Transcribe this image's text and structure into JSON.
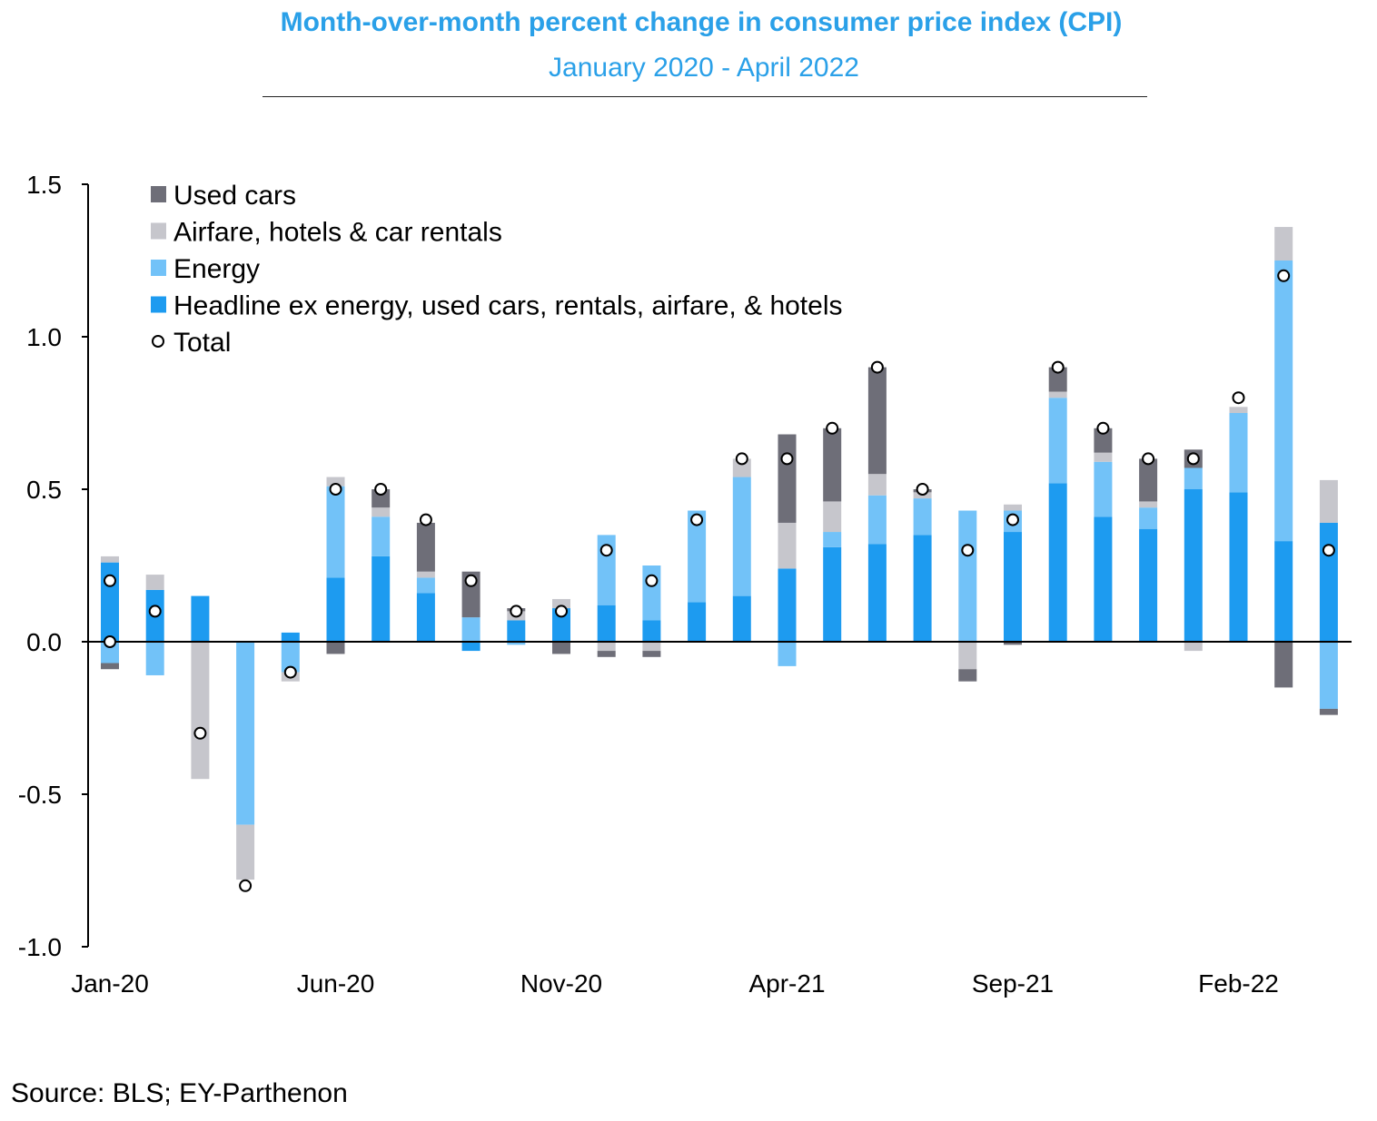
{
  "title": "Month-over-month percent change in consumer price index (CPI)",
  "subtitle": "January 2020 - April 2022",
  "source": "Source: BLS; EY-Parthenon",
  "colors": {
    "used_cars": "#6e6e78",
    "airfare": "#c6c6cc",
    "energy": "#72c2f8",
    "headline": "#1d9bf0",
    "total_marker_fill": "#ffffff",
    "total_marker_stroke": "#000000"
  },
  "chart_data": {
    "type": "bar",
    "stacked": true,
    "ylim": [
      -1.0,
      1.5
    ],
    "yticks": [
      -1.0,
      -0.5,
      0.0,
      0.5,
      1.0,
      1.5
    ],
    "ytick_labels": [
      "-1.0",
      "-0.5",
      "0.0",
      "0.5",
      "1.0",
      "1.5"
    ],
    "grid": false,
    "legend_position": "top-left",
    "categories": [
      "Jan-20",
      "Feb-20",
      "Mar-20",
      "Apr-20",
      "May-20",
      "Jun-20",
      "Jul-20",
      "Aug-20",
      "Sep-20",
      "Oct-20",
      "Nov-20",
      "Dec-20",
      "Jan-21",
      "Feb-21",
      "Mar-21",
      "Apr-21",
      "May-21",
      "Jun-21",
      "Jul-21",
      "Aug-21",
      "Sep-21",
      "Oct-21",
      "Nov-21",
      "Dec-21",
      "Jan-22",
      "Feb-22",
      "Mar-22",
      "Apr-22"
    ],
    "xtick_labels": [
      {
        "index": 0,
        "label": "Jan-20"
      },
      {
        "index": 5,
        "label": "Jun-20"
      },
      {
        "index": 10,
        "label": "Nov-20"
      },
      {
        "index": 15,
        "label": "Apr-21"
      },
      {
        "index": 20,
        "label": "Sep-21"
      },
      {
        "index": 25,
        "label": "Feb-22"
      }
    ],
    "series": [
      {
        "name": "Headline ex energy, used cars, rentals, airfare, & hotels",
        "key": "headline",
        "values": [
          0.26,
          0.17,
          0.15,
          0.0,
          0.03,
          0.21,
          0.28,
          0.16,
          -0.03,
          0.07,
          0.11,
          0.12,
          0.07,
          0.13,
          0.15,
          0.24,
          0.31,
          0.32,
          0.35,
          0.0,
          0.36,
          0.52,
          0.41,
          0.37,
          0.5,
          0.49,
          0.33,
          0.39
        ]
      },
      {
        "name": "Energy",
        "key": "energy",
        "values": [
          -0.07,
          -0.11,
          0.0,
          -0.6,
          -0.1,
          0.3,
          0.13,
          0.05,
          0.08,
          -0.01,
          0.0,
          0.23,
          0.18,
          0.3,
          0.39,
          -0.08,
          0.05,
          0.16,
          0.12,
          0.43,
          0.07,
          0.28,
          0.18,
          0.07,
          0.07,
          0.26,
          0.92,
          -0.22
        ]
      },
      {
        "name": "Airfare, hotels & car rentals",
        "key": "airfare",
        "values": [
          0.02,
          0.05,
          -0.45,
          -0.18,
          -0.03,
          0.03,
          0.03,
          0.02,
          0.0,
          0.03,
          0.03,
          -0.03,
          -0.03,
          0.0,
          0.06,
          0.15,
          0.1,
          0.07,
          0.02,
          -0.09,
          0.02,
          0.02,
          0.03,
          0.02,
          -0.03,
          0.02,
          0.11,
          0.14
        ]
      },
      {
        "name": "Used cars",
        "key": "used_cars",
        "values": [
          -0.02,
          0.0,
          0.0,
          0.0,
          0.0,
          -0.04,
          0.06,
          0.16,
          0.15,
          0.01,
          -0.04,
          -0.02,
          -0.02,
          0.0,
          0.0,
          0.29,
          0.24,
          0.35,
          0.01,
          -0.04,
          -0.01,
          0.08,
          0.08,
          0.14,
          0.06,
          0.0,
          -0.15,
          -0.02
        ]
      },
      {
        "name": "Total",
        "key": "total",
        "marker": "circle",
        "values": [
          0.2,
          0.1,
          -0.3,
          -0.8,
          -0.1,
          0.5,
          0.5,
          0.4,
          0.2,
          0.1,
          0.1,
          0.3,
          0.2,
          0.4,
          0.6,
          0.6,
          0.7,
          0.9,
          0.5,
          0.3,
          0.4,
          0.9,
          0.7,
          0.6,
          0.6,
          0.8,
          1.2,
          0.3
        ]
      }
    ],
    "extra_markers": [
      {
        "index": 0,
        "value": 0.0,
        "series": "total"
      }
    ]
  }
}
